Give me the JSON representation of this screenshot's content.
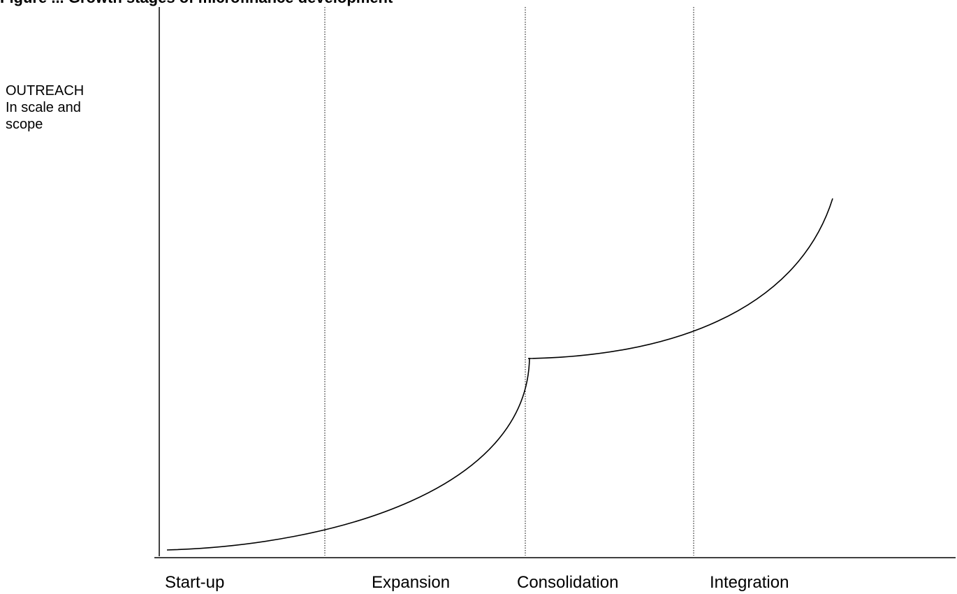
{
  "title": "Figure  ... Growth stages of microfinance development",
  "y_axis": {
    "lines": [
      "OUTREACH",
      "In scale and",
      "scope"
    ]
  },
  "stages": [
    "Start-up",
    "Expansion",
    "Consolidation",
    "Integration"
  ],
  "colors": {
    "line": "#000000",
    "divider": "#000000",
    "background": "#ffffff"
  }
}
